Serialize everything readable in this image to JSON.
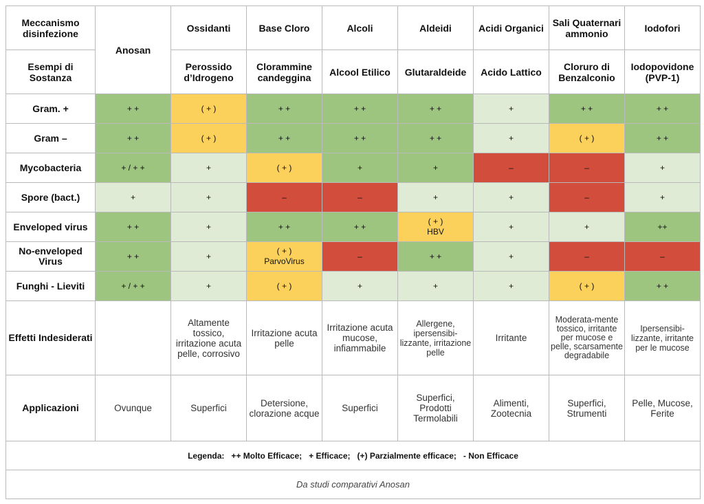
{
  "header": {
    "mechanism_label": "Meccanismo disinfezione",
    "examples_label": "Esempi di Sostanza",
    "anosan": "Anosan",
    "columns": [
      {
        "mechanism": "Ossidanti",
        "example": "Perossido d’Idrogeno"
      },
      {
        "mechanism": "Base Cloro",
        "example": "Clorammine candeggina"
      },
      {
        "mechanism": "Alcoli",
        "example": "Alcool Etilico"
      },
      {
        "mechanism": "Aldeidi",
        "example": "Glutaraldeide"
      },
      {
        "mechanism": "Acidi Organici",
        "example": "Acido Lattico"
      },
      {
        "mechanism": "Sali Quaternari ammonio",
        "example": "Cloruro di Benzalconio"
      },
      {
        "mechanism": "Iodofori",
        "example": "Iodopovidone (PVP-1)"
      }
    ]
  },
  "rows": [
    {
      "label": "Gram.  +",
      "cells": [
        "+ +",
        "( + )",
        "+ +",
        "+ +",
        "+ +",
        "+",
        "+ +",
        "+ +"
      ]
    },
    {
      "label": "Gram –",
      "cells": [
        "+ +",
        "( + )",
        "+ +",
        "+ +",
        "+ +",
        "+",
        "( + )",
        "+ +"
      ]
    },
    {
      "label": "Mycobacteria",
      "cells": [
        "+ / + +",
        "+",
        "( + )",
        "+",
        "+",
        "–",
        "–",
        "+"
      ]
    },
    {
      "label": "Spore (bact.)",
      "cells": [
        "+",
        "+",
        "–",
        "–",
        "+",
        "+",
        "–",
        "+"
      ]
    },
    {
      "label": "Enveloped virus",
      "cells": [
        "+ +",
        "+",
        "+ +",
        "+ +",
        "( + )\nHBV",
        "+",
        "+",
        "++"
      ]
    },
    {
      "label": "No-enveloped Virus",
      "cells": [
        "+ +",
        "+",
        "( + )\nParvoVirus",
        "–",
        "+ +",
        "+",
        "–",
        "–"
      ]
    },
    {
      "label": "Funghi  - Lieviti",
      "cells": [
        "+ / + +",
        "+",
        "( + )",
        "+",
        "+",
        "+",
        "( + )",
        "+ +"
      ]
    }
  ],
  "colors": {
    "g": "#9dc57f",
    "lg": "#e0ebd5",
    "y": "#fbd15b",
    "r": "#d24d3b"
  },
  "effects": {
    "label": "Effetti Indesiderati",
    "cells": [
      "",
      "Altamente tossico, irritazione acuta pelle, corrosivo",
      "Irritazione acuta pelle",
      "Irritazione acuta mucose, infiammabile",
      "Allergene, ipersensibi-lizzante, irritazione pelle",
      "Irritante",
      "Moderata-mente tossico, irritante per mucose e pelle, scarsamente degradabile",
      "Ipersensibi-lizzante, irritante per le mucose"
    ]
  },
  "applications": {
    "label": "Applicazioni",
    "cells": [
      "Ovunque",
      "Superfici",
      "Detersione, clorazione acque",
      "Superfici",
      "Superfici, Prodotti Termolabili",
      "Alimenti, Zootecnia",
      "Superfici, Strumenti",
      "Pelle, Mucose, Ferite"
    ]
  },
  "legend": "Legenda:   ++ Molto Efficace;   + Efficace;   (+) Parzialmente efficace;   - Non Efficace",
  "source": "Da studi comparativi Anosan"
}
